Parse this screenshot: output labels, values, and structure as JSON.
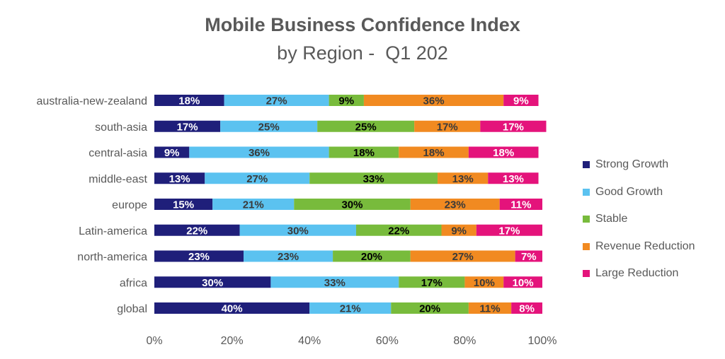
{
  "chart_data": {
    "type": "bar",
    "orientation": "horizontal",
    "stacked": "percent",
    "title": "Mobile Business Confidence Index",
    "subtitle": "by Region -  Q1 202",
    "categories": [
      "australia-new-zealand",
      "south-asia",
      "central-asia",
      "middle-east",
      "europe",
      "Latin-america",
      "north-america",
      "africa",
      "global"
    ],
    "series": [
      {
        "name": "Strong Growth",
        "color": "#1f1f7a",
        "label_color": "#ffffff",
        "values": [
          18,
          17,
          9,
          13,
          15,
          22,
          23,
          30,
          40
        ]
      },
      {
        "name": "Good Growth",
        "color": "#5bc2f0",
        "label_color": "#3a3a3a",
        "values": [
          27,
          25,
          36,
          27,
          21,
          30,
          23,
          33,
          21
        ]
      },
      {
        "name": "Stable",
        "color": "#78bb3c",
        "label_color": "#000000",
        "values": [
          9,
          25,
          18,
          33,
          30,
          22,
          20,
          17,
          20
        ]
      },
      {
        "name": "Revenue Reduction",
        "color": "#f18a21",
        "label_color": "#3a3a3a",
        "values": [
          36,
          17,
          18,
          13,
          23,
          9,
          27,
          10,
          11
        ]
      },
      {
        "name": "Large Reduction",
        "color": "#e4137b",
        "label_color": "#ffffff",
        "values": [
          9,
          17,
          18,
          13,
          11,
          17,
          7,
          10,
          8
        ]
      }
    ],
    "data_labels": [
      [
        "18%",
        "27%",
        "9%",
        "36%",
        "9%"
      ],
      [
        "17%",
        "25%",
        "25%",
        "17%",
        "17%"
      ],
      [
        "9%",
        "36%",
        "18%",
        "18%",
        "18%"
      ],
      [
        "13%",
        "27%",
        "33%",
        "13%",
        "13%"
      ],
      [
        "15%",
        "21%",
        "30%",
        "23%",
        "11%"
      ],
      [
        "22%",
        "30%",
        "22%",
        "9%",
        "17%"
      ],
      [
        "23%",
        "23%",
        "20%",
        "27%",
        "7%"
      ],
      [
        "30%",
        "33%",
        "17%",
        "10%",
        "10%"
      ],
      [
        "40%",
        "21%",
        "20%",
        "11%",
        "8%"
      ]
    ],
    "x_ticks": [
      "0%",
      "20%",
      "40%",
      "60%",
      "80%",
      "100%"
    ],
    "xlim": [
      0,
      100
    ],
    "grid": false,
    "legend_position": "right"
  }
}
